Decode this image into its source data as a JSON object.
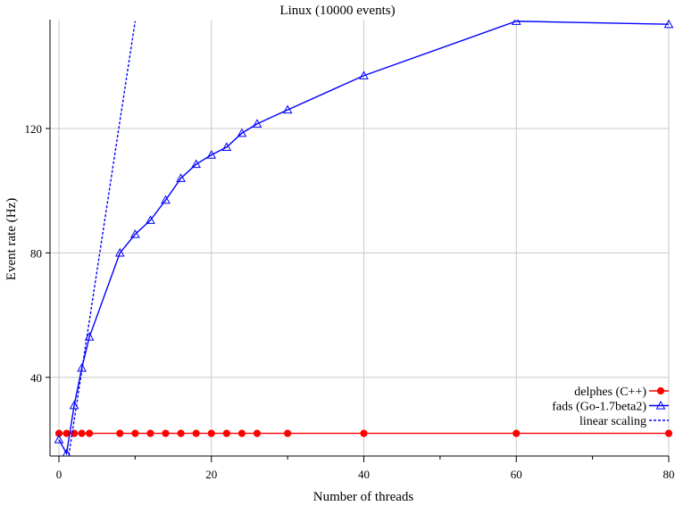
{
  "chart_data": {
    "type": "line",
    "title": "Linux (10000 events)",
    "xlabel": "Number of threads",
    "ylabel": "Event rate (Hz)",
    "xlim": [
      -1,
      80
    ],
    "ylim": [
      15,
      157
    ],
    "x_ticks": [
      0,
      20,
      40,
      60,
      80
    ],
    "x_minor_ticks": [
      10,
      30,
      50,
      70
    ],
    "y_ticks": [
      40,
      80,
      120
    ],
    "grid": true,
    "legend_position": "bottom-right",
    "series": [
      {
        "name": "delphes (C++)",
        "color": "#ff0000",
        "marker": "filled-circle",
        "line": "solid",
        "x": [
          0,
          1,
          2,
          3,
          4,
          8,
          10,
          12,
          14,
          16,
          18,
          20,
          22,
          24,
          26,
          30,
          40,
          60,
          80
        ],
        "y": [
          22,
          22,
          22,
          22,
          22,
          22,
          22,
          22,
          22,
          22,
          22,
          22,
          22,
          22,
          22,
          22,
          22,
          22,
          22
        ]
      },
      {
        "name": "fads (Go-1.7beta2)",
        "color": "#0000ff",
        "marker": "open-triangle",
        "line": "solid",
        "x": [
          0,
          1,
          2,
          3,
          4,
          8,
          10,
          12,
          14,
          16,
          18,
          20,
          22,
          24,
          26,
          30,
          40,
          60,
          80
        ],
        "y": [
          20,
          15.5,
          31,
          43,
          53,
          80,
          86,
          90.5,
          97,
          104,
          108.5,
          111.5,
          114,
          118.5,
          121.5,
          126,
          137,
          154.5,
          153.5
        ]
      },
      {
        "name": "linear scaling",
        "color": "#0000ff",
        "marker": "none",
        "line": "dashed",
        "x": [
          1.3,
          10
        ],
        "y": [
          15,
          154.5
        ]
      }
    ]
  }
}
